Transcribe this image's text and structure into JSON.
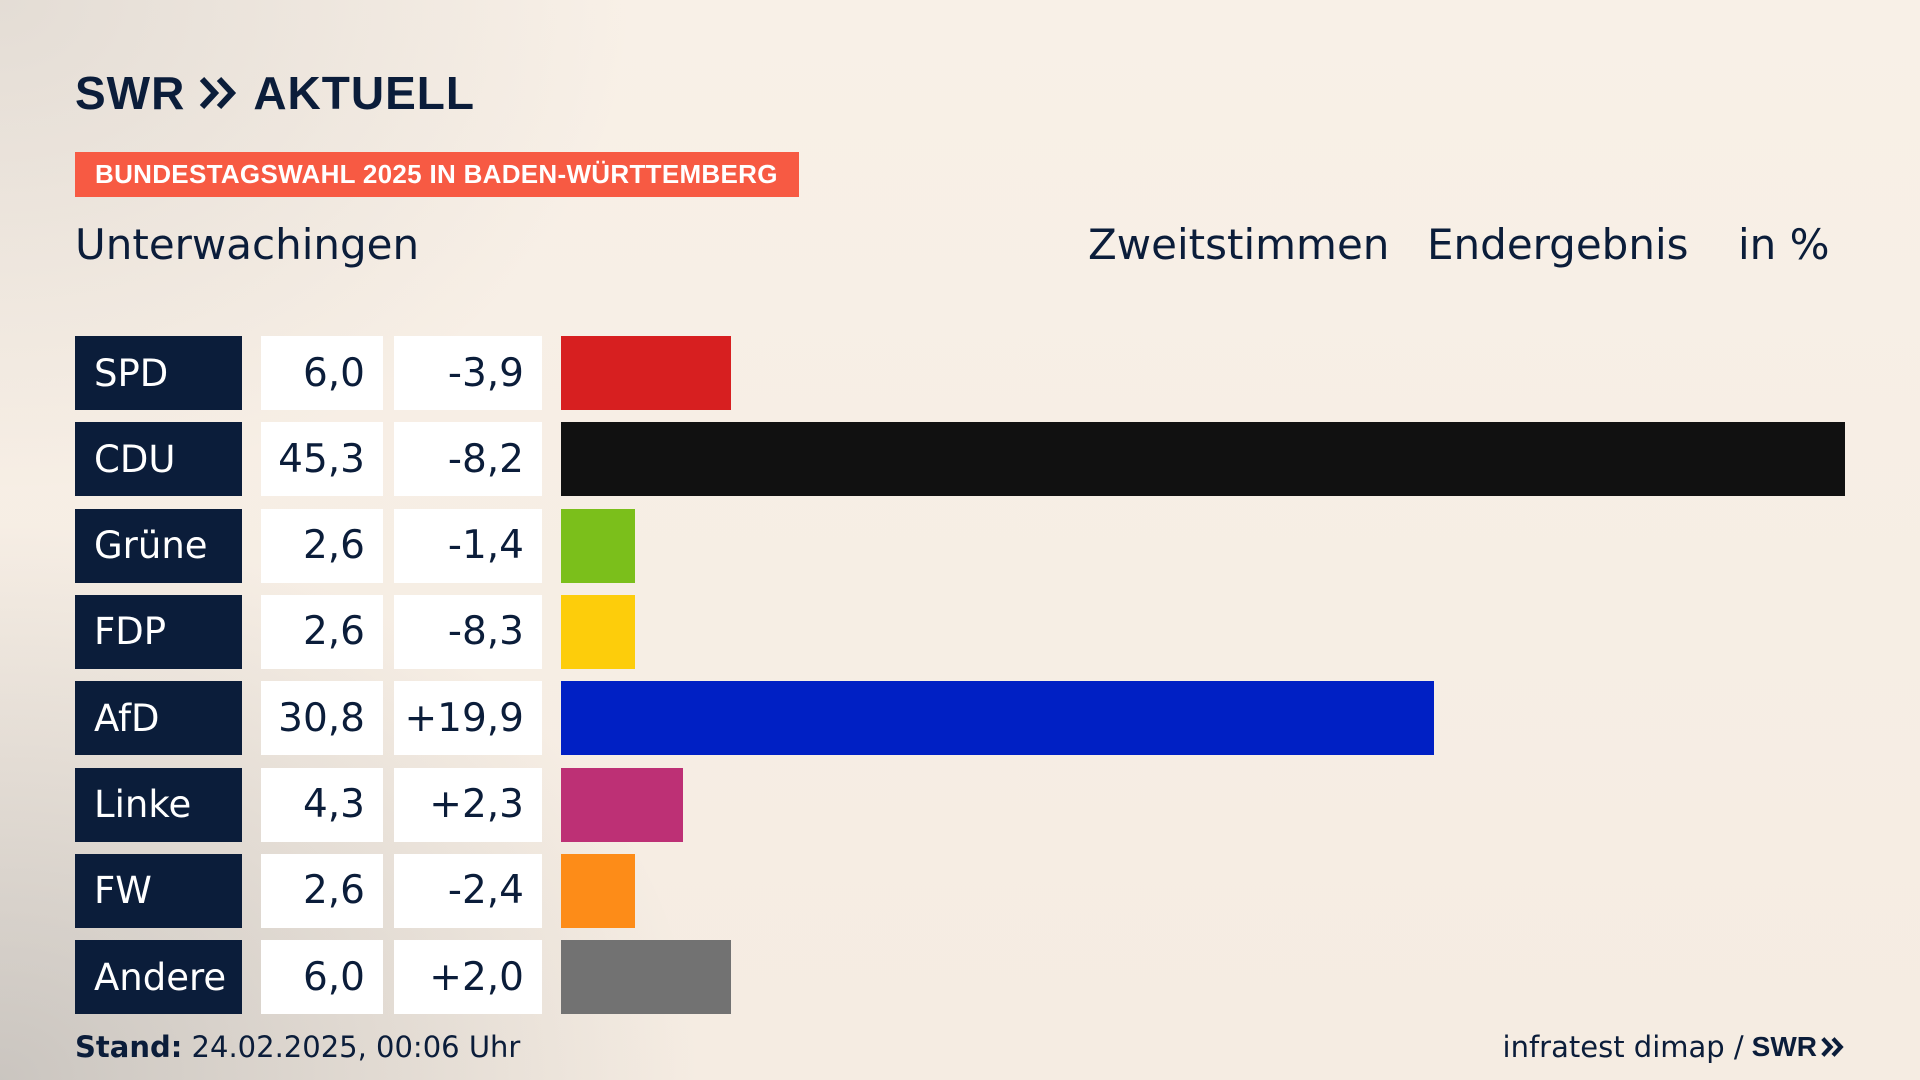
{
  "brand": {
    "name": "SWR",
    "product": "AKTUELL",
    "footer_brand": "SWR"
  },
  "topic": "BUNDESTAGSWAHL 2025 IN BADEN-WÜRTTEMBERG",
  "header": {
    "place": "Unterwachingen",
    "col1": "Zweitstimmen",
    "col2": "Endergebnis",
    "col3": "in %"
  },
  "chart_data": {
    "type": "bar",
    "orientation": "horizontal",
    "title": "Unterwachingen",
    "categories": [
      "SPD",
      "CDU",
      "Grüne",
      "FDP",
      "AfD",
      "Linke",
      "FW",
      "Andere"
    ],
    "series": [
      {
        "name": "Zweitstimmen",
        "values": [
          6.0,
          45.3,
          2.6,
          2.6,
          30.8,
          4.3,
          2.6,
          6.0
        ],
        "labels": [
          "6,0",
          "45,3",
          "2,6",
          "2,6",
          "30,8",
          "4,3",
          "2,6",
          "6,0"
        ]
      }
    ],
    "differences": [
      "-3,9",
      "-8,2",
      "-1,4",
      "-8,3",
      "+19,9",
      "+2,3",
      "-2,4",
      "+2,0"
    ],
    "colors": [
      "#d71f20",
      "#111111",
      "#7bbf1b",
      "#fdcd0b",
      "#0020c4",
      "#bd3075",
      "#fd8c18",
      "#727272"
    ],
    "xlim": [
      0,
      45.3
    ],
    "grid": false,
    "legend": "none"
  },
  "footer": {
    "stand_label": "Stand:",
    "stand_value": "24.02.2025, 00:06 Uhr",
    "source": "infratest dimap /"
  }
}
